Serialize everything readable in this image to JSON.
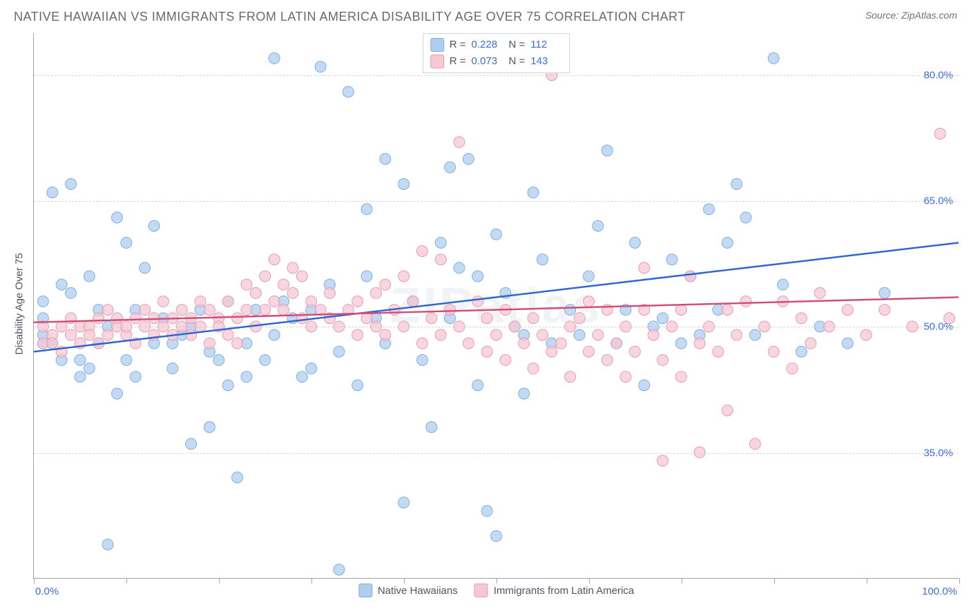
{
  "header": {
    "title": "NATIVE HAWAIIAN VS IMMIGRANTS FROM LATIN AMERICA DISABILITY AGE OVER 75 CORRELATION CHART",
    "source": "Source: ZipAtlas.com"
  },
  "chart": {
    "type": "scatter",
    "ylabel": "Disability Age Over 75",
    "xlim": [
      0,
      100
    ],
    "ylim": [
      20,
      85
    ],
    "yticks": [
      35.0,
      50.0,
      65.0,
      80.0
    ],
    "ytick_labels": [
      "35.0%",
      "50.0%",
      "65.0%",
      "80.0%"
    ],
    "xtick_positions": [
      0,
      10,
      20,
      30,
      40,
      50,
      60,
      70,
      80,
      90,
      100
    ],
    "x_left_label": "0.0%",
    "x_right_label": "100.0%",
    "background_color": "#ffffff",
    "grid_color": "#d1d5db",
    "axis_color": "#9ca3af",
    "watermark": "ZIPatlas",
    "series": [
      {
        "name": "Native Hawaiians",
        "marker_color": "#aecdf0",
        "marker_stroke": "#7fb0e0",
        "line_color": "#2f66d0",
        "R": "0.228",
        "N": "112",
        "trend": {
          "x1": 0,
          "y1": 47.0,
          "x2": 100,
          "y2": 60.0
        },
        "points": [
          [
            1,
            51
          ],
          [
            1,
            49
          ],
          [
            1,
            48
          ],
          [
            1,
            53
          ],
          [
            2,
            48
          ],
          [
            2,
            66
          ],
          [
            3,
            55
          ],
          [
            3,
            46
          ],
          [
            4,
            54
          ],
          [
            4,
            67
          ],
          [
            5,
            44
          ],
          [
            5,
            46
          ],
          [
            6,
            45
          ],
          [
            6,
            56
          ],
          [
            7,
            52
          ],
          [
            7,
            48
          ],
          [
            8,
            24
          ],
          [
            8,
            50
          ],
          [
            9,
            42
          ],
          [
            9,
            63
          ],
          [
            10,
            60
          ],
          [
            10,
            46
          ],
          [
            11,
            44
          ],
          [
            11,
            52
          ],
          [
            12,
            57
          ],
          [
            13,
            48
          ],
          [
            13,
            62
          ],
          [
            14,
            51
          ],
          [
            15,
            45
          ],
          [
            15,
            48
          ],
          [
            16,
            49
          ],
          [
            17,
            50
          ],
          [
            17,
            36
          ],
          [
            18,
            52
          ],
          [
            19,
            38
          ],
          [
            19,
            47
          ],
          [
            20,
            46
          ],
          [
            21,
            43
          ],
          [
            21,
            53
          ],
          [
            22,
            32
          ],
          [
            23,
            44
          ],
          [
            23,
            48
          ],
          [
            24,
            52
          ],
          [
            25,
            46
          ],
          [
            26,
            82
          ],
          [
            26,
            49
          ],
          [
            27,
            53
          ],
          [
            28,
            51
          ],
          [
            29,
            44
          ],
          [
            30,
            52
          ],
          [
            30,
            45
          ],
          [
            31,
            81
          ],
          [
            32,
            55
          ],
          [
            33,
            21
          ],
          [
            33,
            47
          ],
          [
            34,
            78
          ],
          [
            35,
            43
          ],
          [
            36,
            56
          ],
          [
            36,
            64
          ],
          [
            37,
            51
          ],
          [
            38,
            70
          ],
          [
            38,
            48
          ],
          [
            40,
            67
          ],
          [
            40,
            29
          ],
          [
            41,
            53
          ],
          [
            42,
            46
          ],
          [
            43,
            38
          ],
          [
            44,
            60
          ],
          [
            45,
            51
          ],
          [
            45,
            69
          ],
          [
            46,
            57
          ],
          [
            47,
            70
          ],
          [
            48,
            56
          ],
          [
            48,
            43
          ],
          [
            49,
            28
          ],
          [
            50,
            61
          ],
          [
            50,
            25
          ],
          [
            51,
            54
          ],
          [
            52,
            50
          ],
          [
            53,
            49
          ],
          [
            53,
            42
          ],
          [
            54,
            66
          ],
          [
            55,
            58
          ],
          [
            56,
            48
          ],
          [
            57,
            82
          ],
          [
            58,
            52
          ],
          [
            59,
            49
          ],
          [
            60,
            56
          ],
          [
            61,
            62
          ],
          [
            62,
            71
          ],
          [
            63,
            48
          ],
          [
            64,
            52
          ],
          [
            65,
            60
          ],
          [
            66,
            43
          ],
          [
            67,
            50
          ],
          [
            68,
            51
          ],
          [
            69,
            58
          ],
          [
            70,
            48
          ],
          [
            71,
            56
          ],
          [
            72,
            49
          ],
          [
            73,
            64
          ],
          [
            74,
            52
          ],
          [
            75,
            60
          ],
          [
            76,
            67
          ],
          [
            77,
            63
          ],
          [
            78,
            49
          ],
          [
            80,
            82
          ],
          [
            81,
            55
          ],
          [
            83,
            47
          ],
          [
            85,
            50
          ],
          [
            88,
            48
          ],
          [
            92,
            54
          ]
        ]
      },
      {
        "name": "Immigrants from Latin America",
        "marker_color": "#f6c8d4",
        "marker_stroke": "#e89bb0",
        "line_color": "#d04e79",
        "R": "0.073",
        "N": "143",
        "trend": {
          "x1": 0,
          "y1": 50.5,
          "x2": 100,
          "y2": 53.5
        },
        "points": [
          [
            1,
            48
          ],
          [
            1,
            50
          ],
          [
            2,
            49
          ],
          [
            2,
            48
          ],
          [
            3,
            47
          ],
          [
            3,
            50
          ],
          [
            4,
            49
          ],
          [
            4,
            51
          ],
          [
            5,
            50
          ],
          [
            5,
            48
          ],
          [
            6,
            50
          ],
          [
            6,
            49
          ],
          [
            7,
            51
          ],
          [
            7,
            48
          ],
          [
            8,
            49
          ],
          [
            8,
            52
          ],
          [
            9,
            50
          ],
          [
            9,
            51
          ],
          [
            10,
            49
          ],
          [
            10,
            50
          ],
          [
            11,
            51
          ],
          [
            11,
            48
          ],
          [
            12,
            52
          ],
          [
            12,
            50
          ],
          [
            13,
            49
          ],
          [
            13,
            51
          ],
          [
            14,
            53
          ],
          [
            14,
            50
          ],
          [
            15,
            49
          ],
          [
            15,
            51
          ],
          [
            16,
            52
          ],
          [
            16,
            50
          ],
          [
            17,
            51
          ],
          [
            17,
            49
          ],
          [
            18,
            53
          ],
          [
            18,
            50
          ],
          [
            19,
            52
          ],
          [
            19,
            48
          ],
          [
            20,
            51
          ],
          [
            20,
            50
          ],
          [
            21,
            49
          ],
          [
            21,
            53
          ],
          [
            22,
            51
          ],
          [
            22,
            48
          ],
          [
            23,
            52
          ],
          [
            23,
            55
          ],
          [
            24,
            50
          ],
          [
            24,
            54
          ],
          [
            25,
            56
          ],
          [
            25,
            52
          ],
          [
            26,
            53
          ],
          [
            26,
            58
          ],
          [
            27,
            55
          ],
          [
            27,
            52
          ],
          [
            28,
            57
          ],
          [
            28,
            54
          ],
          [
            29,
            51
          ],
          [
            29,
            56
          ],
          [
            30,
            53
          ],
          [
            30,
            50
          ],
          [
            31,
            52
          ],
          [
            32,
            51
          ],
          [
            32,
            54
          ],
          [
            33,
            50
          ],
          [
            34,
            52
          ],
          [
            35,
            49
          ],
          [
            35,
            53
          ],
          [
            36,
            51
          ],
          [
            37,
            50
          ],
          [
            37,
            54
          ],
          [
            38,
            55
          ],
          [
            38,
            49
          ],
          [
            39,
            52
          ],
          [
            40,
            50
          ],
          [
            40,
            56
          ],
          [
            41,
            53
          ],
          [
            42,
            48
          ],
          [
            42,
            59
          ],
          [
            43,
            51
          ],
          [
            44,
            58
          ],
          [
            44,
            49
          ],
          [
            45,
            52
          ],
          [
            46,
            50
          ],
          [
            46,
            72
          ],
          [
            47,
            48
          ],
          [
            48,
            53
          ],
          [
            49,
            47
          ],
          [
            49,
            51
          ],
          [
            50,
            49
          ],
          [
            51,
            52
          ],
          [
            51,
            46
          ],
          [
            52,
            50
          ],
          [
            53,
            48
          ],
          [
            54,
            51
          ],
          [
            54,
            45
          ],
          [
            55,
            49
          ],
          [
            56,
            47
          ],
          [
            56,
            80
          ],
          [
            57,
            48
          ],
          [
            58,
            50
          ],
          [
            58,
            44
          ],
          [
            59,
            51
          ],
          [
            60,
            47
          ],
          [
            60,
            53
          ],
          [
            61,
            49
          ],
          [
            62,
            46
          ],
          [
            62,
            52
          ],
          [
            63,
            48
          ],
          [
            64,
            50
          ],
          [
            64,
            44
          ],
          [
            65,
            47
          ],
          [
            66,
            52
          ],
          [
            66,
            57
          ],
          [
            67,
            49
          ],
          [
            68,
            46
          ],
          [
            68,
            34
          ],
          [
            69,
            50
          ],
          [
            70,
            44
          ],
          [
            70,
            52
          ],
          [
            71,
            56
          ],
          [
            72,
            48
          ],
          [
            72,
            35
          ],
          [
            73,
            50
          ],
          [
            74,
            47
          ],
          [
            75,
            52
          ],
          [
            75,
            40
          ],
          [
            76,
            49
          ],
          [
            77,
            53
          ],
          [
            78,
            36
          ],
          [
            79,
            50
          ],
          [
            80,
            47
          ],
          [
            81,
            53
          ],
          [
            82,
            45
          ],
          [
            83,
            51
          ],
          [
            84,
            48
          ],
          [
            85,
            54
          ],
          [
            86,
            50
          ],
          [
            88,
            52
          ],
          [
            90,
            49
          ],
          [
            92,
            52
          ],
          [
            95,
            50
          ],
          [
            98,
            73
          ],
          [
            99,
            51
          ]
        ]
      }
    ],
    "legend_bottom": [
      {
        "label": "Native Hawaiians"
      },
      {
        "label": "Immigrants from Latin America"
      }
    ]
  }
}
